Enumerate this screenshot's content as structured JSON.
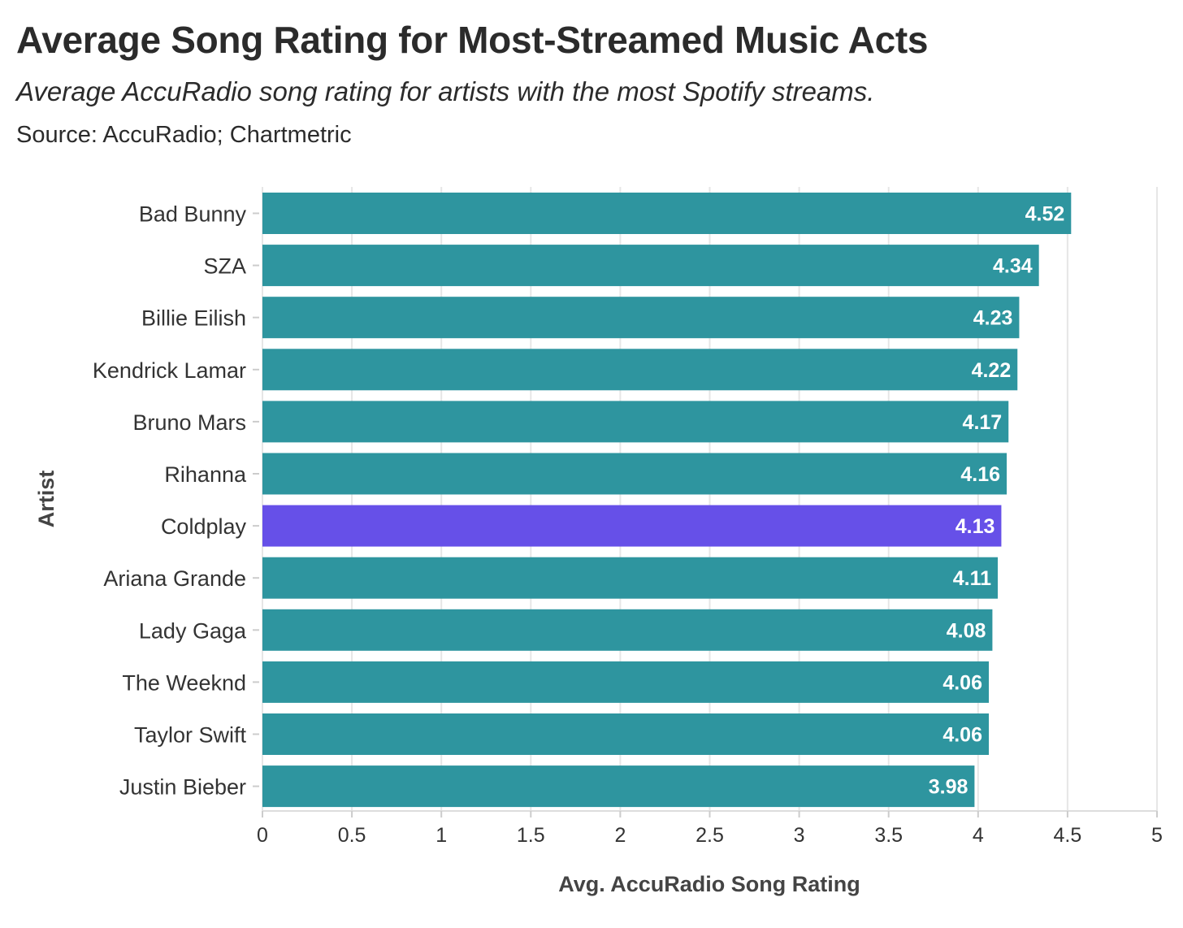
{
  "header": {
    "title": "Average Song Rating for Most-Streamed Music Acts",
    "subtitle": "Average AccuRadio song rating for artists with the most Spotify streams.",
    "source": "Source: AccuRadio; Chartmetric"
  },
  "colors": {
    "bar": "#2e959f",
    "highlight": "#6650e8",
    "grid": "#e6e6e6",
    "text": "#333333"
  },
  "chart_data": {
    "type": "bar",
    "orientation": "horizontal",
    "categories": [
      "Bad Bunny",
      "SZA",
      "Billie Eilish",
      "Kendrick Lamar",
      "Bruno Mars",
      "Rihanna",
      "Coldplay",
      "Ariana Grande",
      "Lady Gaga",
      "The Weeknd",
      "Taylor Swift",
      "Justin Bieber"
    ],
    "values": [
      4.52,
      4.34,
      4.23,
      4.22,
      4.17,
      4.16,
      4.13,
      4.11,
      4.08,
      4.06,
      4.06,
      3.98
    ],
    "data_labels": [
      "4.52",
      "4.34",
      "4.23",
      "4.22",
      "4.17",
      "4.16",
      "4.13",
      "4.11",
      "4.08",
      "4.06",
      "4.06",
      "3.98"
    ],
    "highlight": "Coldplay",
    "xlabel": "Avg. AccuRadio Song Rating",
    "ylabel": "Artist",
    "xlim": [
      0,
      5
    ],
    "xticks": [
      0,
      0.5,
      1,
      1.5,
      2,
      2.5,
      3,
      3.5,
      4,
      4.5,
      5
    ],
    "xtick_labels": [
      "0",
      "0.5",
      "1",
      "1.5",
      "2",
      "2.5",
      "3",
      "3.5",
      "4",
      "4.5",
      "5"
    ],
    "grid": true
  }
}
